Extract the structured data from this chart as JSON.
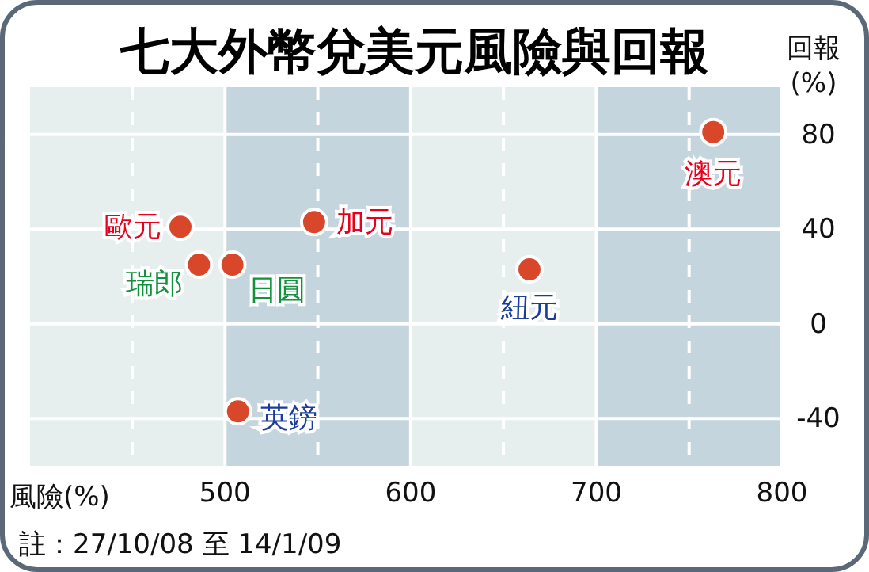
{
  "chart_data": {
    "type": "scatter",
    "title": "七大外幣兌美元風險與回報",
    "xlabel": "風險(%)",
    "ylabel": "回報(%)",
    "annotations": [
      "註：27/10/08 至 14/1/09"
    ],
    "series": [
      {
        "name": "歐元",
        "color": "#d9472b",
        "x": [
          476
        ],
        "values": [
          41
        ]
      },
      {
        "name": "瑞郎",
        "color": "#d9472b",
        "x": [
          486
        ],
        "values": [
          25
        ]
      },
      {
        "name": "日圓",
        "color": "#d9472b",
        "x": [
          504
        ],
        "values": [
          25
        ]
      },
      {
        "name": "加元",
        "color": "#d9472b",
        "x": [
          548
        ],
        "values": [
          43
        ]
      },
      {
        "name": "紐元",
        "color": "#d9472b",
        "x": [
          664
        ],
        "values": [
          23
        ]
      },
      {
        "name": "英鎊",
        "color": "#d9472b",
        "x": [
          507
        ],
        "values": [
          -37
        ]
      },
      {
        "name": "澳元",
        "color": "#d9472b",
        "x": [
          763
        ],
        "values": [
          81
        ]
      }
    ],
    "xlim": [
      395,
      800
    ],
    "ylim": [
      -60,
      100
    ],
    "xticks": [
      {
        "value": 450,
        "label": null
      },
      500,
      {
        "value": 550,
        "label": null
      },
      600,
      {
        "value": 650,
        "label": null
      },
      700,
      {
        "value": 750,
        "label": null
      },
      800
    ],
    "yticks": [
      -40,
      0,
      40,
      80
    ],
    "bands": [
      {
        "axis": "x",
        "from": 500,
        "to": 600,
        "color": "#c5d5de"
      },
      {
        "axis": "x",
        "from": 700,
        "to": 800,
        "color": "#c5d5de"
      }
    ],
    "grid": true,
    "marker": "circle"
  }
}
